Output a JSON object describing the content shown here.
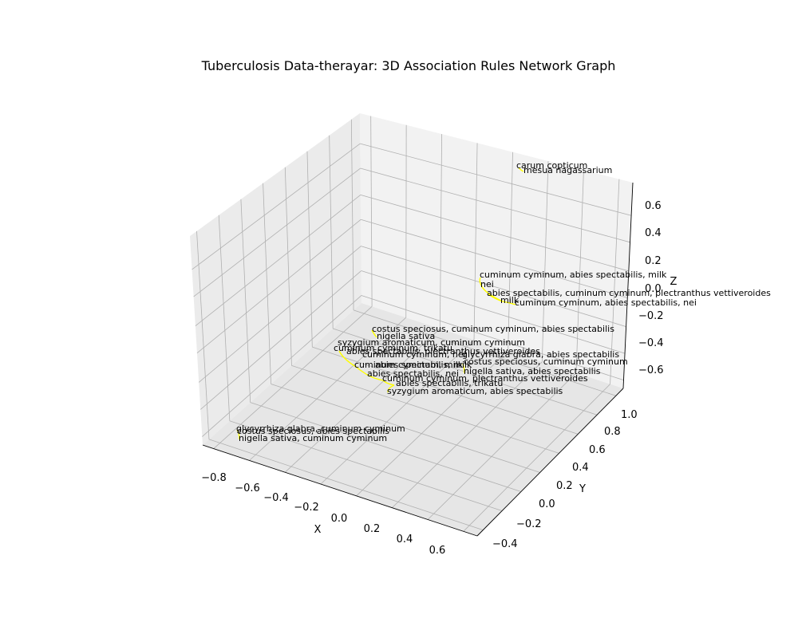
{
  "title": "Tuberculosis Data-therayar:  3D Association Rules Network Graph",
  "chart_data": {
    "type": "network-3d",
    "title": "Tuberculosis Data-therayar:  3D Association Rules Network Graph",
    "xlabel": "X",
    "ylabel": "Y",
    "zlabel": "Z",
    "xticks": [
      "−0.8",
      "−0.6",
      "−0.4",
      "−0.2",
      "0.0",
      "0.2",
      "0.4",
      "0.6"
    ],
    "yticks": [
      "−0.4",
      "−0.2",
      "0.0",
      "0.2",
      "0.4",
      "0.6",
      "0.8",
      "1.0"
    ],
    "zticks": [
      "−0.6",
      "−0.4",
      "−0.2",
      "0.0",
      "0.2",
      "0.4",
      "0.6"
    ],
    "edge_color": "#ffff00",
    "pane_colors": [
      "#f2f2f2",
      "#ebebeb",
      "#e6e6e6"
    ],
    "grid": true,
    "nodes": [
      "carum copticum",
      "mesua nagassarium",
      "cuminum cyminum, abies spectabilis, milk",
      "nei",
      "abies spectabilis, cuminum cyminum, plectranthus vettiveroides",
      "milk",
      "cuminum cyminum, abies spectabilis, nei",
      "costus speciosus, cuminum cyminum, abies spectabilis",
      "nigella sativa",
      "syzygium aromaticum, cuminum cyminum",
      "cuminum cyminum, trikatu",
      "abies spectabilis, plectranthus vettiveroides",
      "cuminum cyminum, nei",
      "glycyrrhiza glabra, abies spectabilis",
      "costus speciosus, cuminum cyminum",
      "cuminum cyminum, milk",
      "abies spectabilis, milk",
      "nigella sativa, abies spectabilis",
      "abies spectabilis, nei",
      "cuminum cyminum, plectranthus vettiveroides",
      "abies spectabilis, trikatu",
      "syzygium aromaticum, abies spectabilis",
      "glycyrrhiza glabra, cuminum cyminum",
      "costus speciosus, abies spectabilis",
      "nigella sativa, cuminum cyminum"
    ],
    "edges": [
      [
        "carum copticum",
        "mesua nagassarium"
      ],
      [
        "cuminum cyminum, abies spectabilis, milk",
        "nei"
      ],
      [
        "nei",
        "milk"
      ],
      [
        "abies spectabilis, cuminum cyminum, plectranthus vettiveroides",
        "milk"
      ],
      [
        "milk",
        "cuminum cyminum, abies spectabilis, nei"
      ],
      [
        "costus speciosus, cuminum cyminum, abies spectabilis",
        "nigella sativa"
      ],
      [
        "cuminum cyminum, trikatu",
        "cuminum cyminum, milk"
      ],
      [
        "cuminum cyminum, milk",
        "abies spectabilis, nei"
      ],
      [
        "abies spectabilis, nei",
        "cuminum cyminum, plectranthus vettiveroides"
      ],
      [
        "cuminum cyminum, plectranthus vettiveroides",
        "abies spectabilis, trikatu"
      ],
      [
        "abies spectabilis, trikatu",
        "syzygium aromaticum, abies spectabilis"
      ],
      [
        "glycyrrhiza glabra, abies spectabilis",
        "nigella sativa, abies spectabilis"
      ],
      [
        "glycyrrhiza glabra, cuminum cyminum",
        "nigella sativa, cuminum cyminum"
      ]
    ]
  }
}
